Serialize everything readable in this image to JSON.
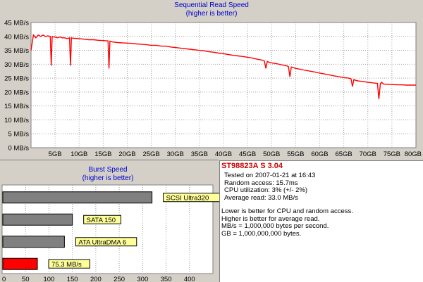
{
  "colors": {
    "line": "#ff0000",
    "frame_bg": "#ffffff",
    "panel_bg": "#d4d0c8",
    "grid": "#a0a0a0",
    "title": "#0000cc",
    "bar_grey": "#808080",
    "bar_red": "#ff0000",
    "label_bg": "#ffff99"
  },
  "chart_data": [
    {
      "type": "line",
      "title": "Sequential Read Speed",
      "subtitle": "(higher is better)",
      "ylim": [
        0,
        45
      ],
      "xlim": [
        0,
        80
      ],
      "yticks": [
        0,
        5,
        10,
        15,
        20,
        25,
        30,
        35,
        40,
        45
      ],
      "ytick_labels": [
        "0 MB/s",
        "5 MB/s",
        "10 MB/s",
        "15 MB/s",
        "20 MB/s",
        "25 MB/s",
        "30 MB/s",
        "35 MB/s",
        "40 MB/s",
        "45 MB/s"
      ],
      "xticks": [
        5,
        10,
        15,
        20,
        25,
        30,
        35,
        40,
        45,
        50,
        55,
        60,
        65,
        70,
        75,
        80
      ],
      "xtick_labels": [
        "5GB",
        "10GB",
        "15GB",
        "20GB",
        "25GB",
        "30GB",
        "35GB",
        "40GB",
        "45GB",
        "50GB",
        "55GB",
        "60GB",
        "65GB",
        "70GB",
        "75GB",
        "80GB"
      ],
      "grid": true,
      "series": [
        {
          "x": [
            0,
            0.5,
            1,
            1.5,
            2,
            2.5,
            3,
            3.5,
            4,
            4.2,
            4.4,
            4.6,
            5,
            5.5,
            6,
            6.5,
            7,
            7.5,
            8,
            8.2,
            8.4,
            8.6,
            9,
            10,
            11,
            12,
            13,
            14,
            15,
            16,
            16.2,
            16.4,
            16.6,
            17,
            18,
            19,
            20,
            21,
            22,
            23,
            24,
            25,
            26,
            27,
            28,
            29,
            30,
            31,
            32,
            33,
            34,
            35,
            36,
            37,
            38,
            39,
            40,
            41,
            42,
            43,
            44,
            45,
            46,
            47,
            48,
            48.5,
            48.8,
            49.1,
            49.5,
            50,
            51,
            52,
            53,
            53.5,
            53.8,
            54.1,
            54.5,
            55,
            56,
            57,
            58,
            59,
            60,
            61,
            62,
            63,
            64,
            65,
            66,
            66.5,
            66.8,
            67.1,
            67.5,
            68,
            69,
            70,
            71,
            72,
            72.3,
            72.6,
            72.9,
            73.2,
            74,
            75,
            76,
            77,
            78,
            79,
            80
          ],
          "y": [
            35,
            40.5,
            39.5,
            40.5,
            40,
            40.5,
            40,
            40.2,
            40,
            29.5,
            40,
            39.8,
            39.8,
            39.5,
            39.8,
            39.5,
            39.5,
            39.2,
            39.5,
            29.5,
            39.5,
            39.4,
            39.3,
            39.2,
            39,
            38.8,
            38.8,
            38.6,
            38.5,
            38.4,
            28.5,
            38.3,
            38.2,
            38,
            37.8,
            37.7,
            37.6,
            37.5,
            37.3,
            37.2,
            37,
            36.8,
            36.8,
            36.5,
            36.5,
            36.2,
            36,
            35.8,
            35.6,
            35.4,
            35.2,
            35,
            34.8,
            34.5,
            34.3,
            34,
            33.8,
            33.5,
            33.2,
            33,
            32.8,
            32.5,
            32.2,
            31.8,
            31.5,
            31.2,
            28.5,
            31,
            30.7,
            30.5,
            30.2,
            29.8,
            29.5,
            29.2,
            25.5,
            29,
            28.8,
            28.5,
            28.2,
            27.8,
            27.5,
            27.2,
            26.8,
            26.5,
            26.2,
            25.8,
            25.5,
            25.2,
            25,
            24.8,
            22,
            24.5,
            24.2,
            24,
            23.8,
            23.5,
            23.3,
            23.1,
            17.5,
            23,
            23.5,
            22.9,
            22.8,
            22.7,
            22.6,
            22.6,
            22.5,
            22.5,
            22.5
          ]
        }
      ]
    },
    {
      "type": "bar",
      "orientation": "horizontal",
      "title": "Burst Speed",
      "subtitle": "(higher is better)",
      "xlim": [
        0,
        450
      ],
      "xticks": [
        0,
        50,
        100,
        150,
        200,
        250,
        300,
        350,
        400
      ],
      "categories": [
        "SCSI Ultra320",
        "SATA 150",
        "ATA UltraDMA 6",
        "75.3 MB/s"
      ],
      "values": [
        320,
        150,
        133,
        75.3
      ],
      "highlight_index": 3
    }
  ],
  "info": {
    "drive": "ST98823A S 3.04",
    "lines": [
      "Tested on 2007-01-21 at 16:43",
      "Random access: 15.7ms",
      "CPU utilization: 3% (+/- 2%)",
      "Average read: 33.0 MB/s"
    ],
    "notes": [
      "Lower is better for CPU and random access.",
      "Higher is better for average read.",
      "MB/s = 1,000,000 bytes per second.",
      "GB = 1,000,000,000 bytes."
    ]
  }
}
